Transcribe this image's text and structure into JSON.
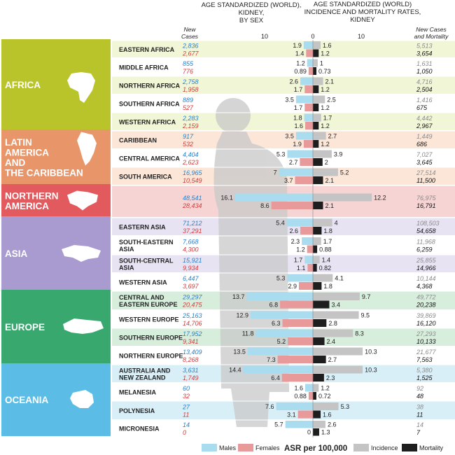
{
  "title_left": [
    "AGE STANDARDIZED (WORLD),",
    "KIDNEY,",
    "BY SEX"
  ],
  "title_right": [
    "AGE STANDARDIZED (WORLD)",
    "INCIDENCE AND MORTALITY RATES,",
    "KIDNEY"
  ],
  "new_cases_header": [
    "New",
    "Cases"
  ],
  "new_cases_mortality_header": [
    "New Cases",
    "and Mortality"
  ],
  "axis_ticks": [
    "10",
    "0",
    "10"
  ],
  "legend": {
    "males": "Males",
    "females": "Females",
    "asr": "ASR per 100,000",
    "incidence": "Incidence",
    "mortality": "Mortality"
  },
  "colors": {
    "males": "#a9dcef",
    "females": "#e89a9a",
    "incidence": "#c4c4c4",
    "mortality": "#1e1e1e",
    "male_cases_text": "#2a7fc8",
    "female_cases_text": "#d63a3a",
    "silhouette": "#c8c8c8"
  },
  "regions": [
    {
      "name": [
        "AFRICA"
      ],
      "color": "#b9c42a",
      "band": "#f1f6d6",
      "first_row": 0,
      "row_count": 5
    },
    {
      "name": [
        "LATIN",
        "AMERICA",
        "AND",
        "THE CARIBBEAN"
      ],
      "color": "#e9956a",
      "band": "#fbe6d8",
      "first_row": 5,
      "row_count": 3
    },
    {
      "name": [
        "NORTHERN",
        "AMERICA"
      ],
      "color": "#e25a5e",
      "band": "#f6d4d4",
      "first_row": 8,
      "row_count": 1
    },
    {
      "name": [
        "ASIA"
      ],
      "color": "#a99bd0",
      "band": "#e8e3f3",
      "first_row": 9,
      "row_count": 4
    },
    {
      "name": [
        "EUROPE"
      ],
      "color": "#38a86f",
      "band": "#d7eedd",
      "first_row": 13,
      "row_count": 4
    },
    {
      "name": [
        "OCEANIA"
      ],
      "color": "#5bbde6",
      "band": "#d9eff8",
      "first_row": 17,
      "row_count": 4
    }
  ],
  "chart_data": {
    "type": "bar",
    "title": "Age standardized (World) rates, kidney cancer, by sex and incidence/mortality",
    "xlabel": "ASR per 100,000",
    "xlim": [
      -15,
      13
    ],
    "series_names": [
      "Males",
      "Females",
      "Incidence",
      "Mortality"
    ],
    "rows": [
      {
        "label": [
          "EASTERN AFRICA"
        ],
        "male_cases": "2,836",
        "female_cases": "2,677",
        "males": 1.9,
        "females": 1.4,
        "incidence": 1.6,
        "mortality": 1.2,
        "new_cases": "5,513",
        "mortality_cases": "3,654"
      },
      {
        "label": [
          "MIDDLE AFRICA"
        ],
        "male_cases": "855",
        "female_cases": "776",
        "males": 1.2,
        "females": 0.89,
        "incidence": 1.0,
        "mortality": 0.73,
        "new_cases": "1,631",
        "mortality_cases": "1,050"
      },
      {
        "label": [
          "NORTHERN AFRICA"
        ],
        "male_cases": "2,758",
        "female_cases": "1,958",
        "males": 2.6,
        "females": 1.7,
        "incidence": 2.1,
        "mortality": 1.2,
        "new_cases": "4,716",
        "mortality_cases": "2,504"
      },
      {
        "label": [
          "SOUTHERN AFRICA"
        ],
        "male_cases": "889",
        "female_cases": "527",
        "males": 3.5,
        "females": 1.7,
        "incidence": 2.5,
        "mortality": 1.2,
        "new_cases": "1,416",
        "mortality_cases": "675"
      },
      {
        "label": [
          "WESTERN AFRICA"
        ],
        "male_cases": "2,283",
        "female_cases": "2,159",
        "males": 1.8,
        "females": 1.6,
        "incidence": 1.7,
        "mortality": 1.2,
        "new_cases": "4,442",
        "mortality_cases": "2,967"
      },
      {
        "label": [
          "CARIBBEAN"
        ],
        "male_cases": "917",
        "female_cases": "532",
        "males": 3.5,
        "females": 1.9,
        "incidence": 2.7,
        "mortality": 1.2,
        "new_cases": "1,449",
        "mortality_cases": "686"
      },
      {
        "label": [
          "CENTRAL AMERICA"
        ],
        "male_cases": "4,404",
        "female_cases": "2,623",
        "males": 5.3,
        "females": 2.7,
        "incidence": 3.9,
        "mortality": 2.0,
        "new_cases": "7,027",
        "mortality_cases": "3,645"
      },
      {
        "label": [
          "SOUTH AMERICA"
        ],
        "male_cases": "16,965",
        "female_cases": "10,549",
        "males": 7.0,
        "females": 3.7,
        "incidence": 5.2,
        "mortality": 2.1,
        "new_cases": "27,514",
        "mortality_cases": "11,500"
      },
      {
        "label": [],
        "male_cases": "48,541",
        "female_cases": "28,434",
        "males": 16.1,
        "females": 8.6,
        "incidence": 12.2,
        "mortality": 2.1,
        "new_cases": "76,975",
        "mortality_cases": "16,791"
      },
      {
        "label": [
          "EASTERN ASIA"
        ],
        "male_cases": "71,212",
        "female_cases": "37,291",
        "males": 5.4,
        "females": 2.6,
        "incidence": 4.0,
        "mortality": 1.8,
        "new_cases": "108,503",
        "mortality_cases": "54,658"
      },
      {
        "label": [
          "SOUTH-EASTERN",
          "ASIA"
        ],
        "male_cases": "7,668",
        "female_cases": "4,300",
        "males": 2.3,
        "females": 1.2,
        "incidence": 1.7,
        "mortality": 0.88,
        "new_cases": "11,968",
        "mortality_cases": "6,259"
      },
      {
        "label": [
          "SOUTH-CENTRAL",
          "ASIA"
        ],
        "male_cases": "15,921",
        "female_cases": "9,934",
        "males": 1.7,
        "females": 1.1,
        "incidence": 1.4,
        "mortality": 0.82,
        "new_cases": "25,855",
        "mortality_cases": "14,966"
      },
      {
        "label": [
          "WESTERN ASIA"
        ],
        "male_cases": "6,447",
        "female_cases": "3,697",
        "males": 5.3,
        "females": 2.9,
        "incidence": 4.1,
        "mortality": 1.8,
        "new_cases": "10,144",
        "mortality_cases": "4,368"
      },
      {
        "label": [
          "CENTRAL AND",
          "EASTERN EUROPE"
        ],
        "male_cases": "29,297",
        "female_cases": "20,475",
        "males": 13.7,
        "females": 6.8,
        "incidence": 9.7,
        "mortality": 3.4,
        "new_cases": "49,772",
        "mortality_cases": "20,238"
      },
      {
        "label": [
          "WESTERN EUROPE"
        ],
        "male_cases": "25,163",
        "female_cases": "14,706",
        "males": 12.9,
        "females": 6.3,
        "incidence": 9.5,
        "mortality": 2.8,
        "new_cases": "39,869",
        "mortality_cases": "16,120"
      },
      {
        "label": [
          "SOUTHERN EUROPE"
        ],
        "male_cases": "17,952",
        "female_cases": "9,341",
        "males": 11.8,
        "females": 5.2,
        "incidence": 8.3,
        "mortality": 2.4,
        "new_cases": "27,293",
        "mortality_cases": "10,133"
      },
      {
        "label": [
          "NORTHERN EUROPE"
        ],
        "male_cases": "13,409",
        "female_cases": "8,268",
        "males": 13.5,
        "females": 7.3,
        "incidence": 10.3,
        "mortality": 2.7,
        "new_cases": "21,677",
        "mortality_cases": "7,563"
      },
      {
        "label": [
          "AUSTRALIA AND",
          "NEW ZEALAND"
        ],
        "male_cases": "3,631",
        "female_cases": "1,749",
        "males": 14.4,
        "females": 6.4,
        "incidence": 10.3,
        "mortality": 2.3,
        "new_cases": "5,380",
        "mortality_cases": "1,525"
      },
      {
        "label": [
          "MELANESIA"
        ],
        "male_cases": "60",
        "female_cases": "32",
        "males": 1.6,
        "females": 0.88,
        "incidence": 1.2,
        "mortality": 0.72,
        "new_cases": "92",
        "mortality_cases": "48"
      },
      {
        "label": [
          "POLYNESIA"
        ],
        "male_cases": "27",
        "female_cases": "11",
        "males": 7.6,
        "females": 3.1,
        "incidence": 5.3,
        "mortality": 1.6,
        "new_cases": "38",
        "mortality_cases": "11"
      },
      {
        "label": [
          "MICRONESIA"
        ],
        "male_cases": "14",
        "female_cases": "0",
        "males": 5.7,
        "females": 0,
        "incidence": 2.6,
        "mortality": 1.3,
        "new_cases": "14",
        "mortality_cases": "7"
      }
    ]
  }
}
